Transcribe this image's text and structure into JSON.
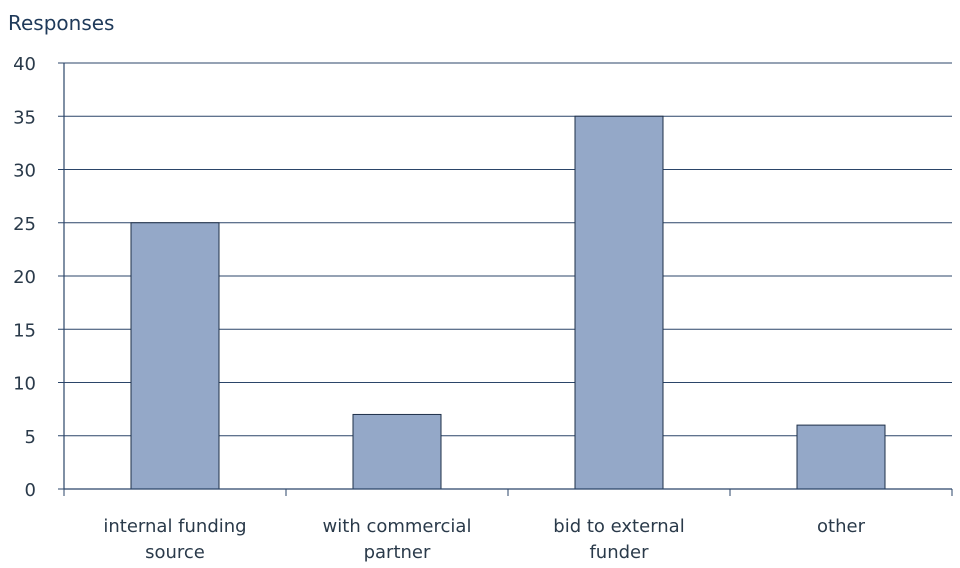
{
  "chart_data": {
    "type": "bar",
    "ylabel": "Responses",
    "xlabel": "",
    "ylim": [
      0,
      40
    ],
    "yticks": [
      0,
      5,
      10,
      15,
      20,
      25,
      30,
      35,
      40
    ],
    "grid": true,
    "categories": [
      [
        "internal funding",
        "source"
      ],
      [
        "with commercial",
        "partner"
      ],
      [
        "bid to external",
        "funder"
      ],
      [
        "other"
      ]
    ],
    "values": [
      25,
      7,
      35,
      6
    ],
    "colors": {
      "bar": "#94a8c8",
      "bar_stroke": "#1e2f47",
      "grid": "#2b4569",
      "axis": "#2b4569",
      "text": "#1f3a5a"
    }
  }
}
